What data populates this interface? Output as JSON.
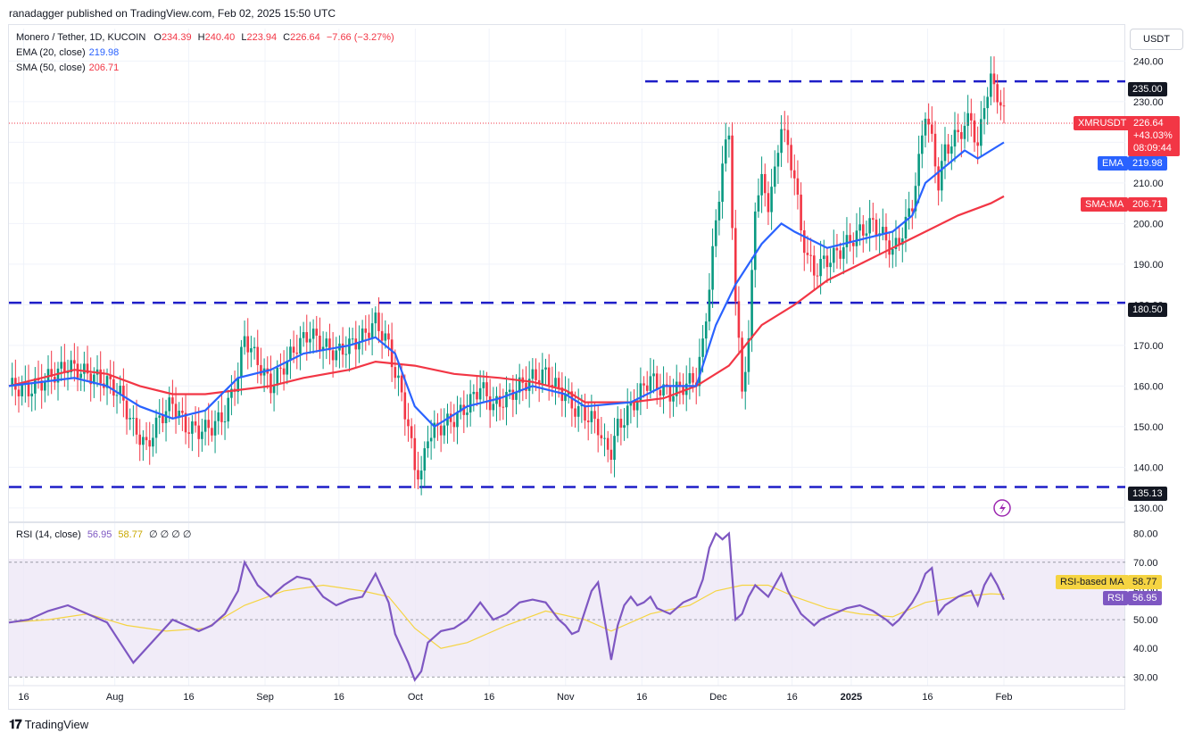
{
  "caption": "ranadagger published on TradingView.com, Feb 02, 2025 15:50 UTC",
  "currency_button": "USDT",
  "legend": {
    "symbol_line": "Monero / Tether, 1D, KUCOIN",
    "ohlc": {
      "o_label": "O",
      "o": "234.39",
      "h_label": "H",
      "h": "240.40",
      "l_label": "L",
      "l": "223.94",
      "c_label": "C",
      "c": "226.64",
      "change": "−7.66 (−3.27%)"
    },
    "ema_label": "EMA (20, close)",
    "ema_value": "219.98",
    "sma_label": "SMA (50, close)",
    "sma_value": "206.71",
    "rsi_label": "RSI (14, close)",
    "rsi_value": "56.95",
    "rsi_ma_value": "58.77",
    "rsi_extra": "∅ ∅ ∅ ∅"
  },
  "tags": {
    "xmr_label": "XMRUSDT",
    "xmr_price": "226.64",
    "xmr_change": "+43.03%",
    "xmr_timer": "08:09:44",
    "ema_label": "EMA",
    "ema_price": "219.98",
    "sma_label": "SMA:MA",
    "sma_price": "206.71",
    "level_235": "235.00",
    "level_180": "180.50",
    "level_135": "135.13",
    "rsi_ma_label": "RSI-based MA",
    "rsi_ma_price": "58.77",
    "rsi_label": "RSI",
    "rsi_price": "56.95"
  },
  "colors": {
    "up": "#089981",
    "down": "#f23645",
    "ema": "#2962ff",
    "sma": "#f23645",
    "level": "#1e1ec8",
    "rsi": "#7e57c2",
    "rsi_ma": "#f5d442",
    "rsi_band": "#ede7f6",
    "bg_tag_dark": "#131722"
  },
  "footer_brand": "TradingView",
  "chart_data": [
    {
      "type": "candlestick",
      "title": "Monero / Tether, 1D, KUCOIN",
      "ylim": [
        128,
        248
      ],
      "y_ticks": [
        "130.00",
        "140.00",
        "150.00",
        "160.00",
        "170.00",
        "180.00",
        "190.00",
        "200.00",
        "210.00",
        "220.00",
        "230.00",
        "240.00"
      ],
      "x_ticks": [
        "16",
        "Aug",
        "16",
        "Sep",
        "16",
        "Oct",
        "16",
        "Nov",
        "16",
        "Dec",
        "16",
        "2025",
        "16",
        "Feb"
      ],
      "horizontal_levels": [
        235.0,
        180.5,
        135.13
      ],
      "close_path": [
        [
          0,
          160
        ],
        [
          6,
          159
        ],
        [
          12,
          162
        ],
        [
          18,
          165
        ],
        [
          24,
          163
        ],
        [
          30,
          161
        ],
        [
          34,
          158
        ],
        [
          38,
          150
        ],
        [
          42,
          145
        ],
        [
          46,
          152
        ],
        [
          50,
          156
        ],
        [
          54,
          150
        ],
        [
          58,
          149
        ],
        [
          62,
          150
        ],
        [
          66,
          153
        ],
        [
          70,
          163
        ],
        [
          72,
          172
        ],
        [
          76,
          166
        ],
        [
          80,
          160
        ],
        [
          84,
          165
        ],
        [
          88,
          170
        ],
        [
          92,
          173
        ],
        [
          96,
          170
        ],
        [
          100,
          168
        ],
        [
          104,
          170
        ],
        [
          108,
          172
        ],
        [
          112,
          176
        ],
        [
          116,
          170
        ],
        [
          118,
          163
        ],
        [
          120,
          158
        ],
        [
          122,
          150
        ],
        [
          124,
          140
        ],
        [
          126,
          138
        ],
        [
          128,
          148
        ],
        [
          132,
          150
        ],
        [
          136,
          152
        ],
        [
          140,
          155
        ],
        [
          144,
          160
        ],
        [
          148,
          155
        ],
        [
          152,
          157
        ],
        [
          156,
          160
        ],
        [
          160,
          162
        ],
        [
          164,
          163
        ],
        [
          168,
          159
        ],
        [
          170,
          158
        ],
        [
          172,
          155
        ],
        [
          174,
          154
        ],
        [
          178,
          152
        ],
        [
          180,
          150
        ],
        [
          182,
          145
        ],
        [
          184,
          144
        ],
        [
          186,
          150
        ],
        [
          188,
          152
        ],
        [
          190,
          155
        ],
        [
          192,
          157
        ],
        [
          194,
          160
        ],
        [
          196,
          162
        ],
        [
          198,
          160
        ],
        [
          202,
          158
        ],
        [
          206,
          160
        ],
        [
          210,
          162
        ],
        [
          212,
          170
        ],
        [
          214,
          185
        ],
        [
          216,
          200
        ],
        [
          218,
          215
        ],
        [
          220,
          222
        ],
        [
          222,
          180
        ],
        [
          224,
          160
        ],
        [
          226,
          170
        ],
        [
          228,
          205
        ],
        [
          230,
          210
        ],
        [
          232,
          205
        ],
        [
          234,
          212
        ],
        [
          236,
          225
        ],
        [
          238,
          218
        ],
        [
          240,
          212
        ],
        [
          242,
          198
        ],
        [
          244,
          192
        ],
        [
          246,
          188
        ],
        [
          248,
          190
        ],
        [
          252,
          192
        ],
        [
          256,
          195
        ],
        [
          260,
          198
        ],
        [
          264,
          200
        ],
        [
          268,
          196
        ],
        [
          270,
          193
        ],
        [
          272,
          196
        ],
        [
          274,
          200
        ],
        [
          276,
          205
        ],
        [
          278,
          215
        ],
        [
          280,
          228
        ],
        [
          282,
          220
        ],
        [
          284,
          210
        ],
        [
          286,
          218
        ],
        [
          290,
          222
        ],
        [
          294,
          226
        ],
        [
          296,
          218
        ],
        [
          298,
          230
        ],
        [
          300,
          235
        ],
        [
          302,
          232
        ],
        [
          304,
          226.64
        ]
      ],
      "ema20": [
        [
          0,
          160
        ],
        [
          20,
          162
        ],
        [
          30,
          160
        ],
        [
          40,
          155
        ],
        [
          50,
          152
        ],
        [
          60,
          154
        ],
        [
          70,
          162
        ],
        [
          80,
          164
        ],
        [
          90,
          168
        ],
        [
          104,
          170
        ],
        [
          112,
          172
        ],
        [
          118,
          168
        ],
        [
          124,
          155
        ],
        [
          130,
          150
        ],
        [
          140,
          155
        ],
        [
          150,
          157
        ],
        [
          160,
          160
        ],
        [
          170,
          158
        ],
        [
          176,
          155
        ],
        [
          190,
          156
        ],
        [
          200,
          160
        ],
        [
          210,
          160
        ],
        [
          216,
          175
        ],
        [
          222,
          185
        ],
        [
          230,
          195
        ],
        [
          236,
          200
        ],
        [
          240,
          198
        ],
        [
          250,
          194
        ],
        [
          260,
          196
        ],
        [
          270,
          198
        ],
        [
          276,
          202
        ],
        [
          280,
          210
        ],
        [
          286,
          214
        ],
        [
          292,
          218
        ],
        [
          296,
          216
        ],
        [
          304,
          219.98
        ]
      ],
      "sma50": [
        [
          0,
          160
        ],
        [
          20,
          164
        ],
        [
          30,
          163
        ],
        [
          40,
          160
        ],
        [
          50,
          158
        ],
        [
          60,
          158
        ],
        [
          70,
          159
        ],
        [
          80,
          160
        ],
        [
          90,
          162
        ],
        [
          104,
          164
        ],
        [
          112,
          166
        ],
        [
          124,
          165
        ],
        [
          136,
          163
        ],
        [
          150,
          162
        ],
        [
          160,
          161
        ],
        [
          170,
          159
        ],
        [
          176,
          156
        ],
        [
          190,
          156
        ],
        [
          200,
          157
        ],
        [
          210,
          160
        ],
        [
          220,
          165
        ],
        [
          230,
          175
        ],
        [
          240,
          180
        ],
        [
          250,
          186
        ],
        [
          260,
          190
        ],
        [
          270,
          194
        ],
        [
          280,
          198
        ],
        [
          290,
          202
        ],
        [
          300,
          205
        ],
        [
          304,
          206.71
        ]
      ]
    },
    {
      "type": "line",
      "title": "RSI (14, close)",
      "ylim": [
        27,
        83
      ],
      "y_ticks": [
        "30.00",
        "40.00",
        "50.00",
        "60.00",
        "70.00",
        "80.00"
      ],
      "bands": [
        30,
        50,
        70
      ],
      "rsi": [
        [
          0,
          49
        ],
        [
          6,
          50
        ],
        [
          12,
          53
        ],
        [
          18,
          55
        ],
        [
          24,
          52
        ],
        [
          30,
          49
        ],
        [
          34,
          42
        ],
        [
          38,
          35
        ],
        [
          42,
          40
        ],
        [
          46,
          45
        ],
        [
          50,
          50
        ],
        [
          54,
          48
        ],
        [
          58,
          46
        ],
        [
          62,
          48
        ],
        [
          66,
          52
        ],
        [
          70,
          60
        ],
        [
          72,
          70
        ],
        [
          76,
          62
        ],
        [
          80,
          58
        ],
        [
          84,
          62
        ],
        [
          88,
          65
        ],
        [
          92,
          64
        ],
        [
          96,
          58
        ],
        [
          100,
          55
        ],
        [
          104,
          57
        ],
        [
          108,
          58
        ],
        [
          112,
          66
        ],
        [
          116,
          56
        ],
        [
          118,
          45
        ],
        [
          120,
          40
        ],
        [
          122,
          35
        ],
        [
          124,
          29
        ],
        [
          126,
          32
        ],
        [
          128,
          42
        ],
        [
          132,
          46
        ],
        [
          136,
          47
        ],
        [
          140,
          50
        ],
        [
          144,
          56
        ],
        [
          148,
          50
        ],
        [
          152,
          52
        ],
        [
          156,
          56
        ],
        [
          160,
          57
        ],
        [
          164,
          56
        ],
        [
          168,
          50
        ],
        [
          170,
          48
        ],
        [
          172,
          45
        ],
        [
          174,
          46
        ],
        [
          178,
          60
        ],
        [
          180,
          63
        ],
        [
          182,
          50
        ],
        [
          184,
          36
        ],
        [
          186,
          48
        ],
        [
          188,
          55
        ],
        [
          190,
          58
        ],
        [
          192,
          55
        ],
        [
          194,
          56
        ],
        [
          196,
          58
        ],
        [
          198,
          54
        ],
        [
          202,
          52
        ],
        [
          206,
          56
        ],
        [
          210,
          58
        ],
        [
          212,
          64
        ],
        [
          214,
          75
        ],
        [
          216,
          80
        ],
        [
          218,
          78
        ],
        [
          220,
          80
        ],
        [
          222,
          50
        ],
        [
          224,
          52
        ],
        [
          226,
          58
        ],
        [
          228,
          62
        ],
        [
          230,
          60
        ],
        [
          232,
          58
        ],
        [
          234,
          62
        ],
        [
          236,
          66
        ],
        [
          238,
          60
        ],
        [
          240,
          56
        ],
        [
          242,
          52
        ],
        [
          244,
          50
        ],
        [
          246,
          48
        ],
        [
          248,
          50
        ],
        [
          252,
          52
        ],
        [
          256,
          54
        ],
        [
          260,
          55
        ],
        [
          264,
          53
        ],
        [
          268,
          50
        ],
        [
          270,
          48
        ],
        [
          272,
          50
        ],
        [
          274,
          53
        ],
        [
          276,
          56
        ],
        [
          278,
          60
        ],
        [
          280,
          66
        ],
        [
          282,
          68
        ],
        [
          284,
          52
        ],
        [
          286,
          55
        ],
        [
          290,
          58
        ],
        [
          294,
          60
        ],
        [
          296,
          55
        ],
        [
          298,
          62
        ],
        [
          300,
          66
        ],
        [
          302,
          62
        ],
        [
          304,
          56.95
        ]
      ],
      "rsi_ma": [
        [
          0,
          49
        ],
        [
          12,
          50
        ],
        [
          24,
          52
        ],
        [
          36,
          48
        ],
        [
          48,
          46
        ],
        [
          60,
          47
        ],
        [
          72,
          55
        ],
        [
          84,
          60
        ],
        [
          96,
          62
        ],
        [
          108,
          60
        ],
        [
          116,
          58
        ],
        [
          124,
          47
        ],
        [
          132,
          40
        ],
        [
          140,
          42
        ],
        [
          152,
          48
        ],
        [
          164,
          53
        ],
        [
          176,
          50
        ],
        [
          184,
          46
        ],
        [
          196,
          52
        ],
        [
          208,
          55
        ],
        [
          216,
          60
        ],
        [
          224,
          62
        ],
        [
          232,
          62
        ],
        [
          240,
          58
        ],
        [
          250,
          54
        ],
        [
          260,
          52
        ],
        [
          270,
          51
        ],
        [
          280,
          56
        ],
        [
          290,
          58
        ],
        [
          300,
          59
        ],
        [
          304,
          58.77
        ]
      ]
    }
  ]
}
